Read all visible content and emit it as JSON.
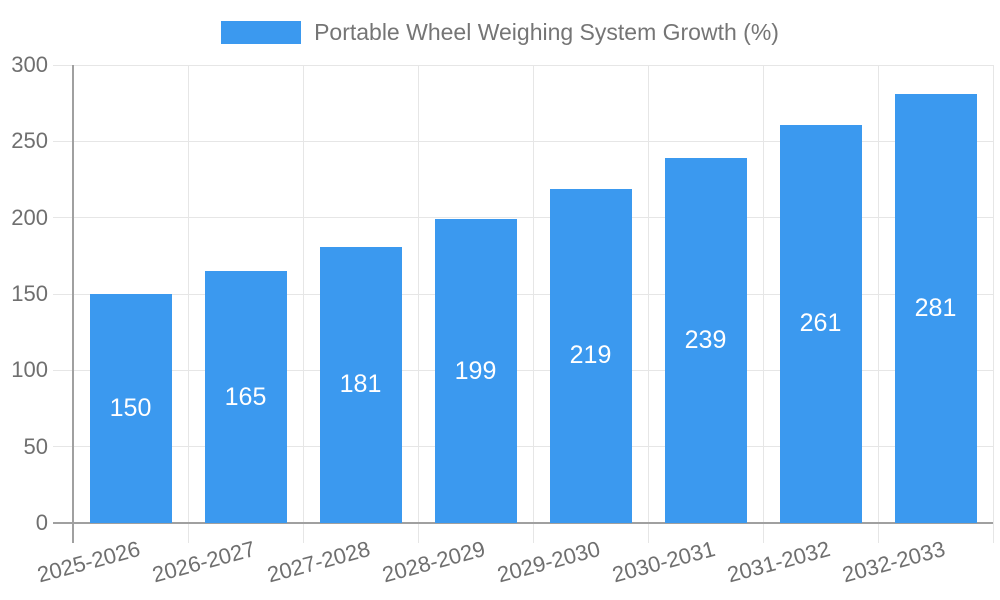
{
  "chart_data": {
    "type": "bar",
    "title": "Portable Wheel Weighing System Growth (%)",
    "categories": [
      "2025-2026",
      "2026-2027",
      "2027-2028",
      "2028-2029",
      "2029-2030",
      "2030-2031",
      "2031-2032",
      "2032-2033"
    ],
    "values": [
      150,
      165,
      181,
      199,
      219,
      239,
      261,
      281
    ],
    "xlabel": "",
    "ylabel": "",
    "ylim": [
      0,
      300
    ],
    "yticks": [
      0,
      50,
      100,
      150,
      200,
      250,
      300
    ],
    "grid": true,
    "legend_position": "top-center",
    "value_labels": "inside-bar-centered",
    "x_label_rotation_deg": -15,
    "colors": {
      "bar": "#3b99ef",
      "grid": "#e6e6e6",
      "axis": "#a0a0a0",
      "tick_text": "#6f6f6f",
      "title_text": "#757575",
      "value_text": "#ffffff",
      "background": "#ffffff"
    }
  }
}
